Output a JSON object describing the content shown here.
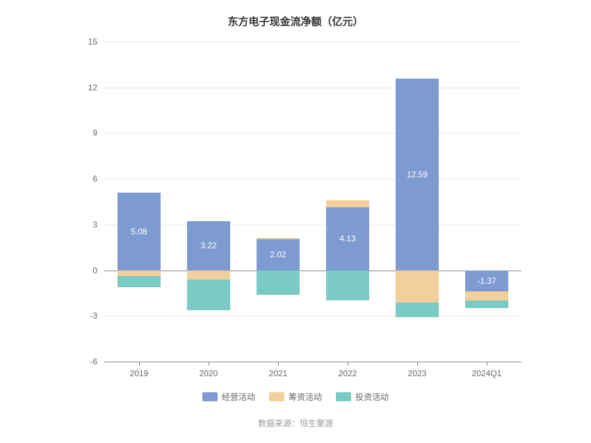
{
  "title": "东方电子现金流净额（亿元）",
  "source": "数据来源：恒生聚源",
  "y_axis": {
    "min": -6,
    "max": 15,
    "ticks": [
      -6,
      -3,
      0,
      3,
      6,
      9,
      12,
      15
    ]
  },
  "categories": [
    "2019",
    "2020",
    "2021",
    "2022",
    "2023",
    "2024Q1"
  ],
  "series": [
    {
      "name": "经营活动",
      "color": "#7e9bd1",
      "values": [
        5.08,
        3.22,
        2.02,
        4.13,
        12.59,
        -1.37
      ],
      "show_labels": true
    },
    {
      "name": "筹资活动",
      "color": "#f3d09b",
      "values": [
        -0.4,
        -0.6,
        0.1,
        0.45,
        -2.1,
        -0.6
      ],
      "show_labels": false
    },
    {
      "name": "投资活动",
      "color": "#79cbc3",
      "values": [
        -0.7,
        -2.0,
        -1.6,
        -2.0,
        -1.0,
        -0.5
      ],
      "show_labels": false
    }
  ],
  "bar_width_ratio": 0.62,
  "label_color": "#ffffff",
  "title_color": "#333333",
  "tick_color": "#666666",
  "grid_color": "#e6e6e6",
  "axis_color": "#888888",
  "background_color": "#ffffff",
  "legend_items": [
    {
      "label": "经营活动",
      "color": "#7e9bd1"
    },
    {
      "label": "筹资活动",
      "color": "#f3d09b"
    },
    {
      "label": "投资活动",
      "color": "#79cbc3"
    }
  ]
}
